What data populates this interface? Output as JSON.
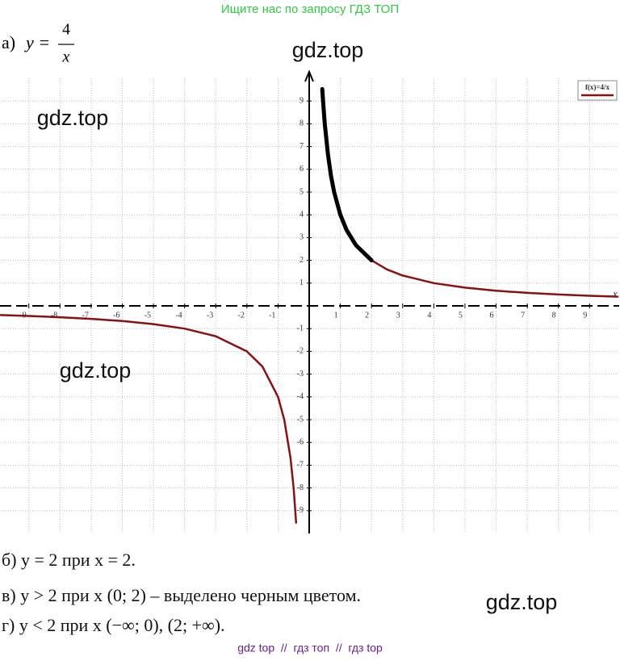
{
  "header": {
    "banner": "Ищите нас по запросу ГДЗ ТОП",
    "part": "а)",
    "lhs": "y =",
    "numerator": "4",
    "denominator": "x"
  },
  "watermarks": [
    "gdz.top",
    "gdz.top",
    "gdz.top",
    "gdz.top"
  ],
  "chart_data": {
    "type": "line",
    "x_label": "x",
    "xlim": [
      -9.9,
      9.9
    ],
    "ylim": [
      -10,
      10
    ],
    "xticks": [
      -9,
      -8,
      -7,
      -6,
      -5,
      -4,
      -3,
      -2,
      -1,
      1,
      2,
      3,
      4,
      5,
      6,
      7,
      8,
      9
    ],
    "yticks": [
      -9,
      -8,
      -7,
      -6,
      -5,
      -4,
      -3,
      -2,
      -1,
      1,
      2,
      3,
      4,
      5,
      6,
      7,
      8,
      9
    ],
    "grid": true,
    "legend": "top-right",
    "series": [
      {
        "name": "f(x)=4/x",
        "color": "#8b1010",
        "x": [
          -9.9,
          -9,
          -8,
          -7,
          -6,
          -5,
          -4,
          -3,
          -2,
          -1.5,
          -1,
          -0.8,
          -0.6,
          -0.5,
          -0.42,
          0,
          2,
          2.5,
          3,
          4,
          5,
          6,
          7,
          8,
          9,
          9.9
        ],
        "values": [
          -0.404,
          -0.444,
          -0.5,
          -0.571,
          -0.667,
          -0.8,
          -1,
          -1.333,
          -2,
          -2.667,
          -4,
          -5,
          -6.667,
          -8,
          -9.524,
          null,
          2,
          1.6,
          1.333,
          1,
          0.8,
          0.667,
          0.571,
          0.5,
          0.444,
          0.404
        ]
      },
      {
        "color": "#000000",
        "x": [
          0.42,
          0.45,
          0.5,
          0.6,
          0.7,
          0.8,
          1,
          1.2,
          1.5,
          2
        ],
        "values": [
          9.524,
          8.889,
          8,
          6.667,
          5.714,
          5,
          4,
          3.333,
          2.667,
          2
        ]
      }
    ]
  },
  "answers": [
    "б) y = 2 при x = 2.",
    "в) y > 2 при x (0; 2) – выделено черным цветом.",
    "г) y < 2 при x (−∞; 0), (2; +∞)."
  ],
  "footer": "gdz top  //  гдз топ  //  гдз top"
}
